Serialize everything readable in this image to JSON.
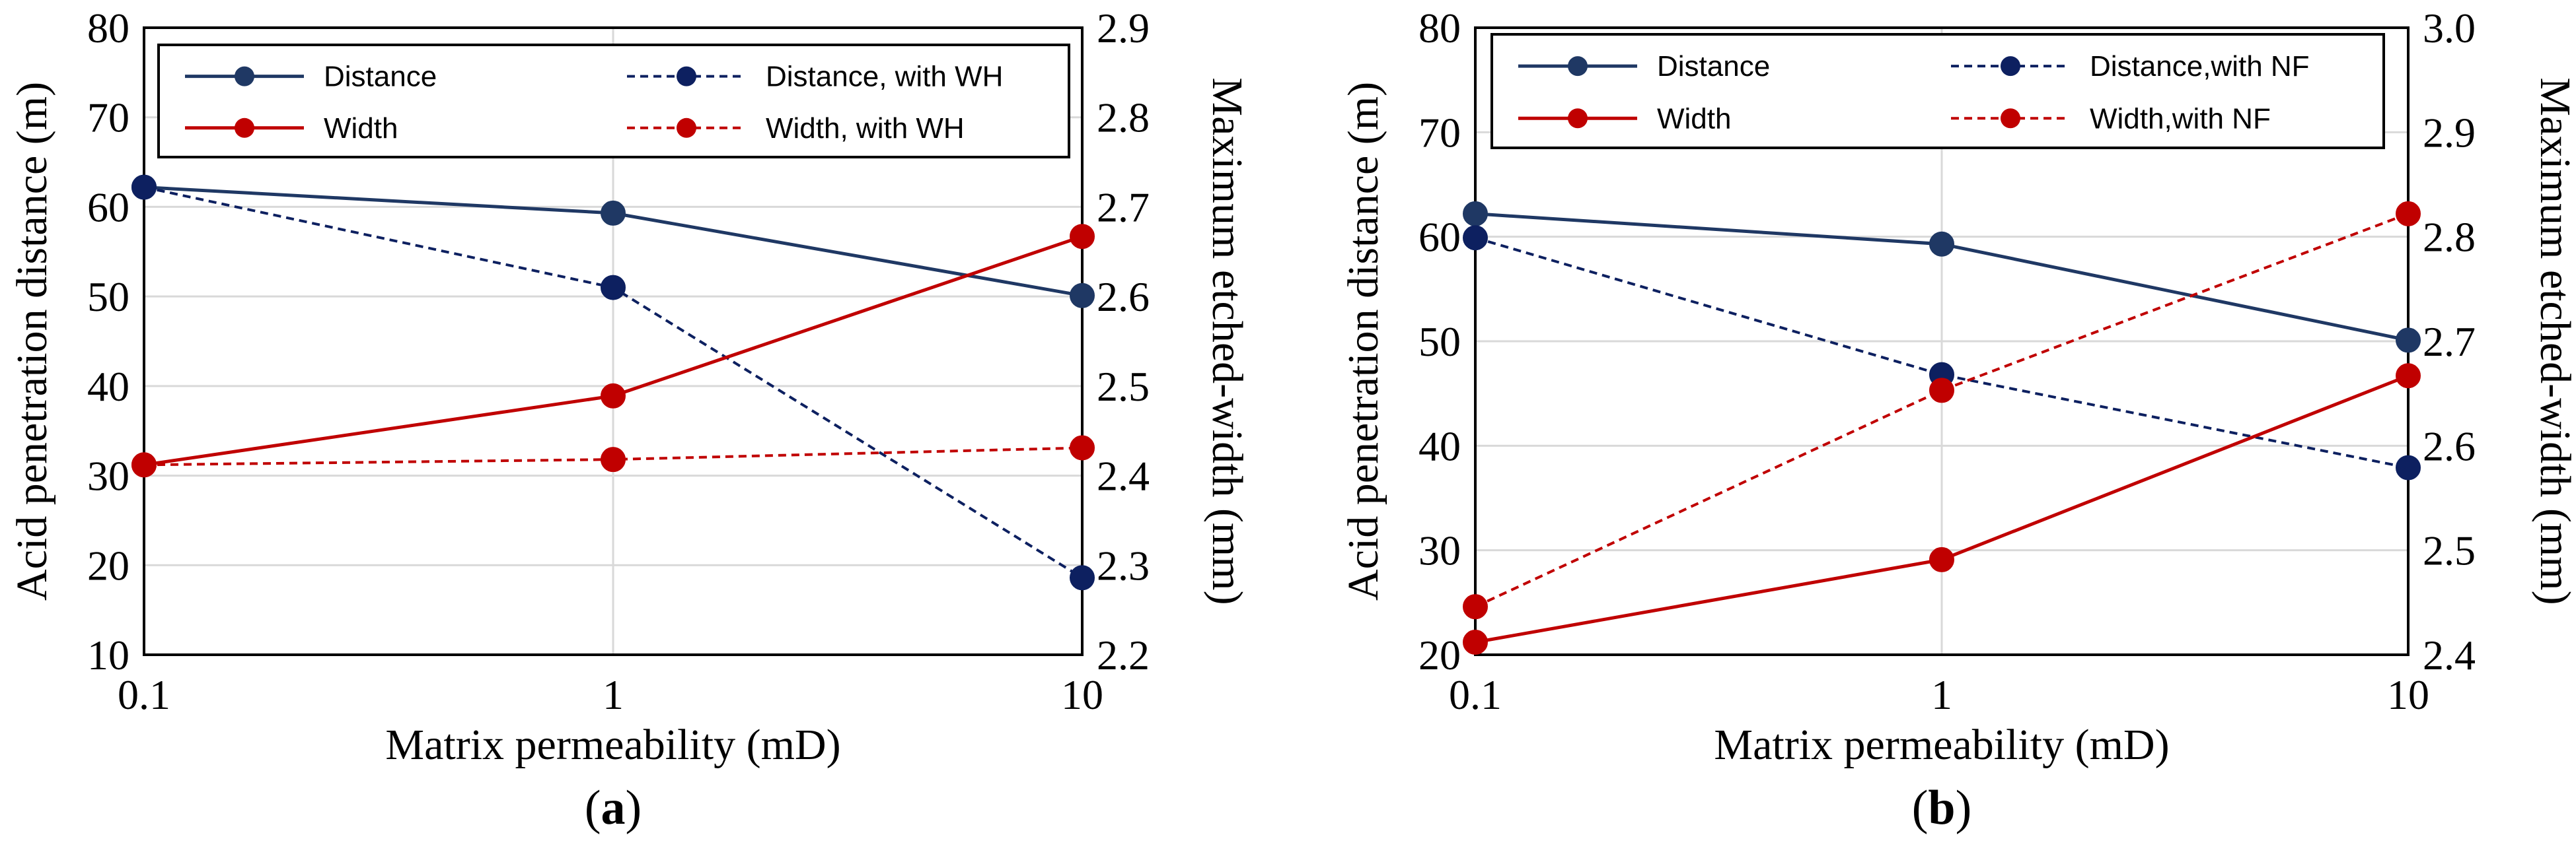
{
  "chart_data": [
    {
      "type": "line",
      "panel_label": "(a)",
      "panel_letter": "a",
      "xlabel": "Matrix permeability (mD)",
      "ylabel": "Acid penetration distance (m)",
      "y2label": "Maximum etched-width (mm)",
      "x_scale": "log",
      "categories": [
        "0.1",
        "1",
        "10"
      ],
      "x": [
        0.1,
        1,
        10
      ],
      "ylim": [
        10,
        80
      ],
      "yticks": [
        "10",
        "20",
        "30",
        "40",
        "50",
        "60",
        "70",
        "80"
      ],
      "y2lim": [
        2.2,
        2.9
      ],
      "y2ticks": [
        "2.2",
        "2.3",
        "2.4",
        "2.5",
        "2.6",
        "2.7",
        "2.8",
        "2.9"
      ],
      "grid": true,
      "legend_position": "top",
      "series": [
        {
          "name": "Distance",
          "axis": "left",
          "values": [
            62.2,
            59.3,
            50.1
          ],
          "color": "#1f3864",
          "dash": false
        },
        {
          "name": "Distance, with  WH",
          "axis": "left",
          "values": [
            62.2,
            51.0,
            18.6
          ],
          "color": "#0d2060",
          "dash": true
        },
        {
          "name": "Width",
          "axis": "right",
          "values": [
            2.412,
            2.489,
            2.667
          ],
          "color": "#c00000",
          "dash": false
        },
        {
          "name": "Width, with WH",
          "axis": "right",
          "values": [
            2.412,
            2.418,
            2.431
          ],
          "color": "#c00000",
          "dash": true
        }
      ]
    },
    {
      "type": "line",
      "panel_label": "(b)",
      "panel_letter": "b",
      "xlabel": "Matrix permeability (mD)",
      "ylabel": "Acid penetration distance (m)",
      "y2label": "Maximum etched-width (mm)",
      "x_scale": "log",
      "categories": [
        "0.1",
        "1",
        "10"
      ],
      "x": [
        0.1,
        1,
        10
      ],
      "ylim": [
        20,
        80
      ],
      "yticks": [
        "20",
        "30",
        "40",
        "50",
        "60",
        "70",
        "80"
      ],
      "y2lim": [
        2.4,
        3.0
      ],
      "y2ticks": [
        "2.4",
        "2.5",
        "2.6",
        "2.7",
        "2.8",
        "2.9",
        "3.0"
      ],
      "grid": true,
      "legend_position": "top",
      "series": [
        {
          "name": "Distance",
          "axis": "left",
          "values": [
            62.2,
            59.3,
            50.1
          ],
          "color": "#1f3864",
          "dash": false
        },
        {
          "name": "Distance,with NF",
          "axis": "left",
          "values": [
            59.9,
            46.8,
            37.9
          ],
          "color": "#0d2060",
          "dash": true
        },
        {
          "name": "Width",
          "axis": "right",
          "values": [
            2.412,
            2.491,
            2.667
          ],
          "color": "#c00000",
          "dash": false
        },
        {
          "name": "Width,with NF",
          "axis": "right",
          "values": [
            2.446,
            2.653,
            2.822
          ],
          "color": "#c00000",
          "dash": true
        }
      ]
    }
  ]
}
